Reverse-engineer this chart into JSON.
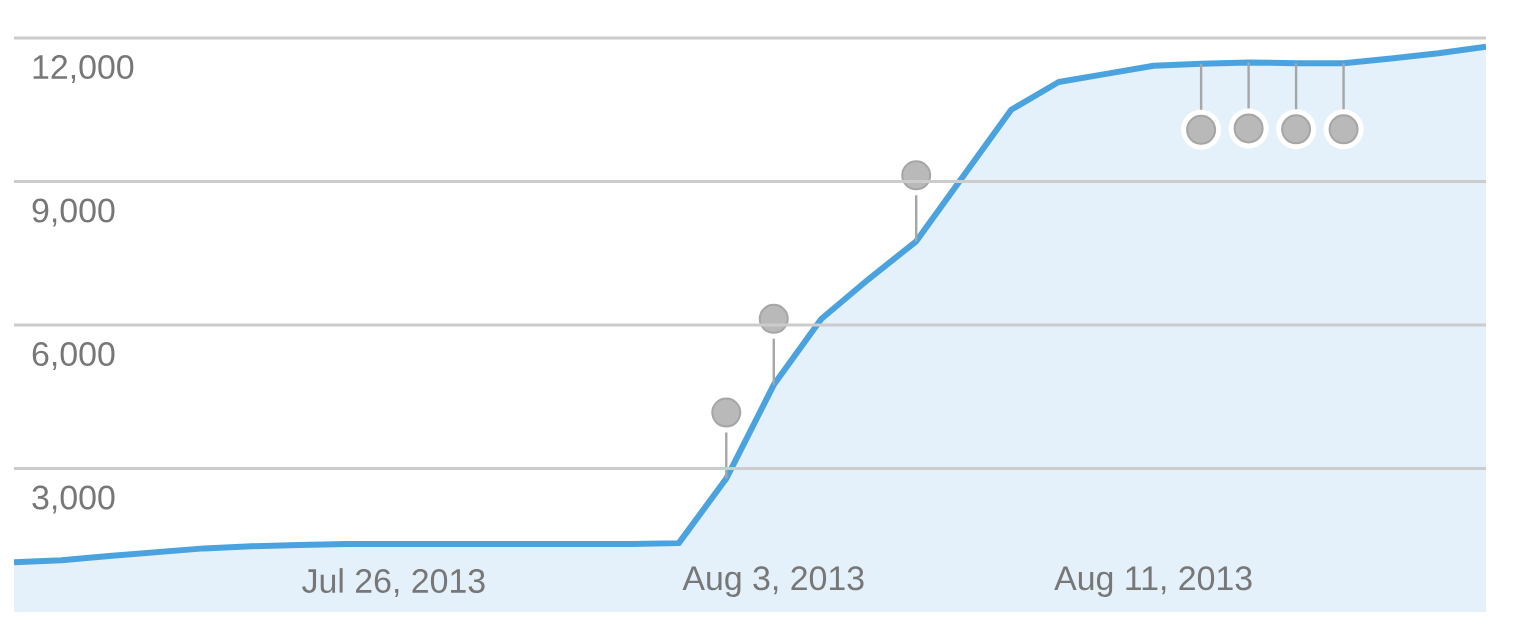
{
  "chart_data": {
    "type": "area",
    "x": [
      "2013-07-18",
      "2013-07-19",
      "2013-07-20",
      "2013-07-21",
      "2013-07-22",
      "2013-07-23",
      "2013-07-24",
      "2013-07-25",
      "2013-07-26",
      "2013-07-27",
      "2013-07-28",
      "2013-07-29",
      "2013-07-30",
      "2013-07-31",
      "2013-08-01",
      "2013-08-02",
      "2013-08-03",
      "2013-08-04",
      "2013-08-05",
      "2013-08-06",
      "2013-08-07",
      "2013-08-08",
      "2013-08-09",
      "2013-08-10",
      "2013-08-11",
      "2013-08-12",
      "2013-08-13",
      "2013-08-14",
      "2013-08-15",
      "2013-08-16",
      "2013-08-17",
      "2013-08-18"
    ],
    "series": [
      {
        "color": "#4aa3df",
        "values": [
          1040,
          1080,
          1170,
          1250,
          1330,
          1375,
          1400,
          1420,
          1420,
          1420,
          1420,
          1420,
          1420,
          1420,
          1440,
          2790,
          4750,
          6125,
          6960,
          7750,
          9125,
          10500,
          11080,
          11250,
          11420,
          11460,
          11490,
          11470,
          11470,
          11570,
          11680,
          11820
        ]
      }
    ],
    "xlim": [
      "2013-07-18",
      "2013-08-18"
    ],
    "xticks": [
      {
        "value": "2013-07-26",
        "label": "Jul 26, 2013"
      },
      {
        "value": "2013-08-03",
        "label": "Aug 3, 2013"
      },
      {
        "value": "2013-08-11",
        "label": "Aug 11, 2013"
      }
    ],
    "ylim": [
      0,
      12000
    ],
    "yticks": [
      {
        "value": 3000,
        "label": "3,000"
      },
      {
        "value": 6000,
        "label": "6,000"
      },
      {
        "value": 9000,
        "label": "9,000"
      },
      {
        "value": 12000,
        "label": "12,000"
      }
    ],
    "grid": "y",
    "marker": "none",
    "line_style": "solid"
  }
}
